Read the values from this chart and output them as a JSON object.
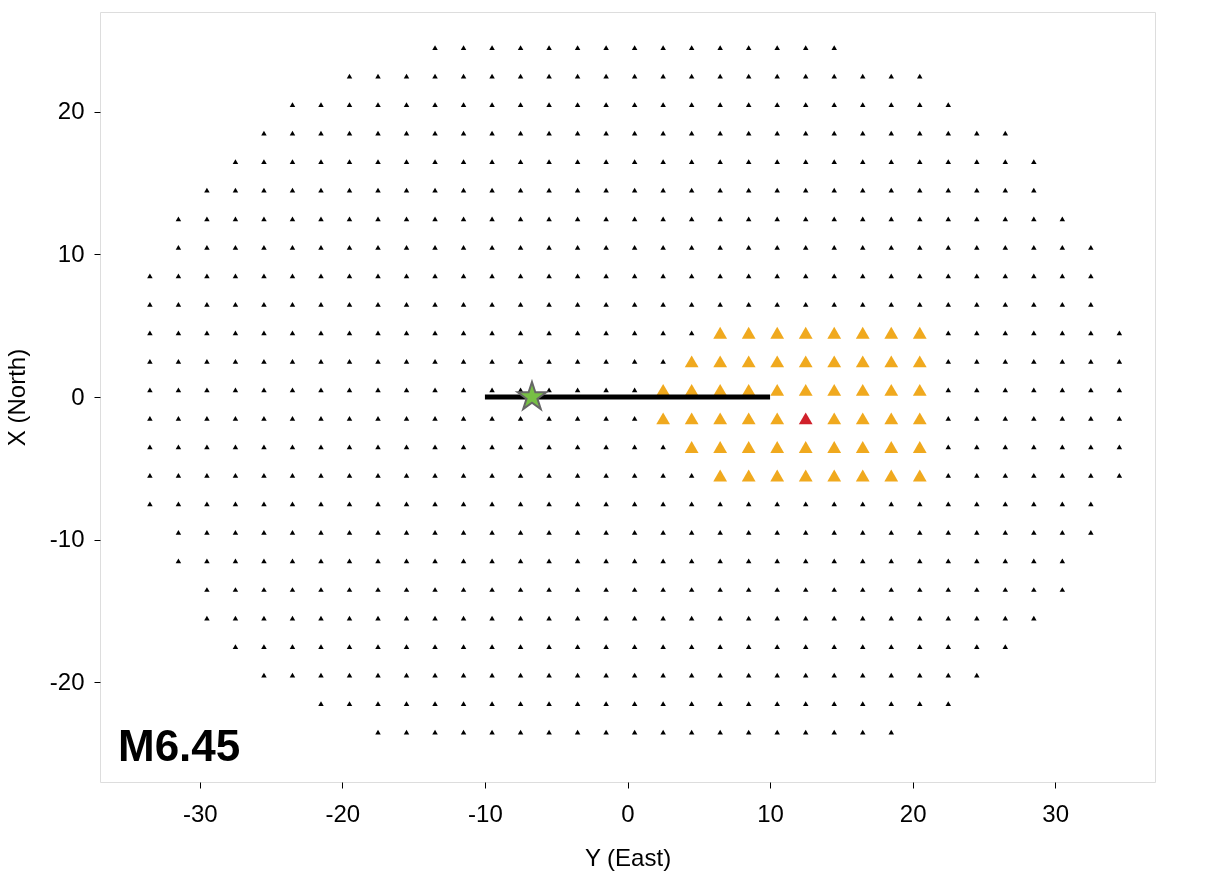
{
  "chart_data": {
    "type": "scatter",
    "xlabel": "Y (East)",
    "ylabel": "X (North)",
    "xlim": [
      -37,
      37
    ],
    "ylim": [
      -27,
      27
    ],
    "grid": false,
    "marker": "triangle",
    "annotations": [
      "M6.45"
    ],
    "xticks": [
      -30,
      -20,
      -10,
      0,
      10,
      20,
      30
    ],
    "yticks": [
      -20,
      -10,
      0,
      10,
      20
    ],
    "series": [
      {
        "color": "#000000",
        "x": [
          -13.5,
          -11.5,
          -9.5,
          -7.5,
          -5.5,
          -3.5,
          -1.5,
          0.5,
          2.5,
          4.5,
          6.5,
          8.5,
          10.5,
          12.5,
          14.5
        ],
        "values": [
          24.5,
          24.5,
          24.5,
          24.5,
          24.5,
          24.5,
          24.5,
          24.5,
          24.5,
          24.5,
          24.5,
          24.5,
          24.5,
          24.5,
          24.5
        ]
      },
      {
        "color": "#000000",
        "x": [
          -19.5,
          -17.5,
          -15.5,
          -13.5,
          -11.5,
          -9.5,
          -7.5,
          -5.5,
          -3.5,
          -1.5,
          0.5,
          2.5,
          4.5,
          6.5,
          8.5,
          10.5,
          12.5,
          14.5,
          16.5,
          18.5,
          20.5
        ],
        "values": [
          22.5,
          22.5,
          22.5,
          22.5,
          22.5,
          22.5,
          22.5,
          22.5,
          22.5,
          22.5,
          22.5,
          22.5,
          22.5,
          22.5,
          22.5,
          22.5,
          22.5,
          22.5,
          22.5,
          22.5,
          22.5
        ]
      },
      {
        "color": "#000000",
        "x": [
          -23.5,
          -21.5,
          -19.5,
          -17.5,
          -15.5,
          -13.5,
          -11.5,
          -9.5,
          -7.5,
          -5.5,
          -3.5,
          -1.5,
          0.5,
          2.5,
          4.5,
          6.5,
          8.5,
          10.5,
          12.5,
          14.5,
          16.5,
          18.5,
          20.5,
          22.5
        ],
        "values": [
          20.5,
          20.5,
          20.5,
          20.5,
          20.5,
          20.5,
          20.5,
          20.5,
          20.5,
          20.5,
          20.5,
          20.5,
          20.5,
          20.5,
          20.5,
          20.5,
          20.5,
          20.5,
          20.5,
          20.5,
          20.5,
          20.5,
          20.5,
          20.5
        ]
      },
      {
        "color": "#000000",
        "x": [
          -25.5,
          -23.5,
          -21.5,
          -19.5,
          -17.5,
          -15.5,
          -13.5,
          -11.5,
          -9.5,
          -7.5,
          -5.5,
          -3.5,
          -1.5,
          0.5,
          2.5,
          4.5,
          6.5,
          8.5,
          10.5,
          12.5,
          14.5,
          16.5,
          18.5,
          20.5,
          22.5,
          24.5,
          26.5
        ],
        "values": [
          18.5,
          18.5,
          18.5,
          18.5,
          18.5,
          18.5,
          18.5,
          18.5,
          18.5,
          18.5,
          18.5,
          18.5,
          18.5,
          18.5,
          18.5,
          18.5,
          18.5,
          18.5,
          18.5,
          18.5,
          18.5,
          18.5,
          18.5,
          18.5,
          18.5,
          18.5,
          18.5
        ]
      },
      {
        "color": "#000000",
        "x": [
          -27.5,
          -25.5,
          -23.5,
          -21.5,
          -19.5,
          -17.5,
          -15.5,
          -13.5,
          -11.5,
          -9.5,
          -7.5,
          -5.5,
          -3.5,
          -1.5,
          0.5,
          2.5,
          4.5,
          6.5,
          8.5,
          10.5,
          12.5,
          14.5,
          16.5,
          18.5,
          20.5,
          22.5,
          24.5,
          26.5,
          28.5
        ],
        "values": [
          16.5,
          16.5,
          16.5,
          16.5,
          16.5,
          16.5,
          16.5,
          16.5,
          16.5,
          16.5,
          16.5,
          16.5,
          16.5,
          16.5,
          16.5,
          16.5,
          16.5,
          16.5,
          16.5,
          16.5,
          16.5,
          16.5,
          16.5,
          16.5,
          16.5,
          16.5,
          16.5,
          16.5,
          16.5
        ]
      },
      {
        "color": "#000000",
        "x": [
          -29.5,
          -27.5,
          -25.5,
          -23.5,
          -21.5,
          -19.5,
          -17.5,
          -15.5,
          -13.5,
          -11.5,
          -9.5,
          -7.5,
          -5.5,
          -3.5,
          -1.5,
          0.5,
          2.5,
          4.5,
          6.5,
          8.5,
          10.5,
          12.5,
          14.5,
          16.5,
          18.5,
          20.5,
          22.5,
          24.5,
          26.5,
          28.5
        ],
        "values": [
          14.5,
          14.5,
          14.5,
          14.5,
          14.5,
          14.5,
          14.5,
          14.5,
          14.5,
          14.5,
          14.5,
          14.5,
          14.5,
          14.5,
          14.5,
          14.5,
          14.5,
          14.5,
          14.5,
          14.5,
          14.5,
          14.5,
          14.5,
          14.5,
          14.5,
          14.5,
          14.5,
          14.5,
          14.5,
          14.5
        ]
      },
      {
        "color": "#000000",
        "x": [
          -31.5,
          -29.5,
          -27.5,
          -25.5,
          -23.5,
          -21.5,
          -19.5,
          -17.5,
          -15.5,
          -13.5,
          -11.5,
          -9.5,
          -7.5,
          -5.5,
          -3.5,
          -1.5,
          0.5,
          2.5,
          4.5,
          6.5,
          8.5,
          10.5,
          12.5,
          14.5,
          16.5,
          18.5,
          20.5,
          22.5,
          24.5,
          26.5,
          28.5,
          30.5
        ],
        "values": [
          12.5,
          12.5,
          12.5,
          12.5,
          12.5,
          12.5,
          12.5,
          12.5,
          12.5,
          12.5,
          12.5,
          12.5,
          12.5,
          12.5,
          12.5,
          12.5,
          12.5,
          12.5,
          12.5,
          12.5,
          12.5,
          12.5,
          12.5,
          12.5,
          12.5,
          12.5,
          12.5,
          12.5,
          12.5,
          12.5,
          12.5,
          12.5
        ]
      },
      {
        "color": "#000000",
        "x": [
          -31.5,
          -29.5,
          -27.5,
          -25.5,
          -23.5,
          -21.5,
          -19.5,
          -17.5,
          -15.5,
          -13.5,
          -11.5,
          -9.5,
          -7.5,
          -5.5,
          -3.5,
          -1.5,
          0.5,
          2.5,
          4.5,
          6.5,
          8.5,
          10.5,
          12.5,
          14.5,
          16.5,
          18.5,
          20.5,
          22.5,
          24.5,
          26.5,
          28.5,
          30.5,
          32.5
        ],
        "values": [
          10.5,
          10.5,
          10.5,
          10.5,
          10.5,
          10.5,
          10.5,
          10.5,
          10.5,
          10.5,
          10.5,
          10.5,
          10.5,
          10.5,
          10.5,
          10.5,
          10.5,
          10.5,
          10.5,
          10.5,
          10.5,
          10.5,
          10.5,
          10.5,
          10.5,
          10.5,
          10.5,
          10.5,
          10.5,
          10.5,
          10.5,
          10.5,
          10.5
        ]
      },
      {
        "color": "#000000",
        "x": [
          -33.5,
          -31.5,
          -29.5,
          -27.5,
          -25.5,
          -23.5,
          -21.5,
          -19.5,
          -17.5,
          -15.5,
          -13.5,
          -11.5,
          -9.5,
          -7.5,
          -5.5,
          -3.5,
          -1.5,
          0.5,
          2.5,
          4.5,
          6.5,
          8.5,
          10.5,
          12.5,
          14.5,
          16.5,
          18.5,
          20.5,
          22.5,
          24.5,
          26.5,
          28.5,
          30.5,
          32.5
        ],
        "values": [
          8.5,
          8.5,
          8.5,
          8.5,
          8.5,
          8.5,
          8.5,
          8.5,
          8.5,
          8.5,
          8.5,
          8.5,
          8.5,
          8.5,
          8.5,
          8.5,
          8.5,
          8.5,
          8.5,
          8.5,
          8.5,
          8.5,
          8.5,
          8.5,
          8.5,
          8.5,
          8.5,
          8.5,
          8.5,
          8.5,
          8.5,
          8.5,
          8.5,
          8.5
        ]
      },
      {
        "color": "#000000",
        "x": [
          -33.5,
          -31.5,
          -29.5,
          -27.5,
          -25.5,
          -23.5,
          -21.5,
          -19.5,
          -17.5,
          -15.5,
          -13.5,
          -11.5,
          -9.5,
          -7.5,
          -5.5,
          -3.5,
          -1.5,
          0.5,
          2.5,
          4.5,
          6.5,
          8.5,
          10.5,
          12.5,
          14.5,
          16.5,
          18.5,
          20.5,
          22.5,
          24.5,
          26.5,
          28.5,
          30.5,
          32.5
        ],
        "values": [
          6.5,
          6.5,
          6.5,
          6.5,
          6.5,
          6.5,
          6.5,
          6.5,
          6.5,
          6.5,
          6.5,
          6.5,
          6.5,
          6.5,
          6.5,
          6.5,
          6.5,
          6.5,
          6.5,
          6.5,
          6.5,
          6.5,
          6.5,
          6.5,
          6.5,
          6.5,
          6.5,
          6.5,
          6.5,
          6.5,
          6.5,
          6.5,
          6.5,
          6.5
        ]
      },
      {
        "color": "#000000",
        "x": [
          -33.5,
          -31.5,
          -29.5,
          -27.5,
          -25.5,
          -23.5,
          -21.5,
          -19.5,
          -17.5,
          -15.5,
          -13.5,
          -11.5,
          -9.5,
          -7.5,
          -5.5,
          -3.5,
          -1.5,
          0.5,
          2.5,
          4.5,
          22.5,
          24.5,
          26.5,
          28.5,
          30.5,
          32.5,
          34.5
        ],
        "values": [
          4.5,
          4.5,
          4.5,
          4.5,
          4.5,
          4.5,
          4.5,
          4.5,
          4.5,
          4.5,
          4.5,
          4.5,
          4.5,
          4.5,
          4.5,
          4.5,
          4.5,
          4.5,
          4.5,
          4.5,
          4.5,
          4.5,
          4.5,
          4.5,
          4.5,
          4.5,
          4.5
        ]
      },
      {
        "color": "#000000",
        "x": [
          -33.5,
          -31.5,
          -29.5,
          -27.5,
          -25.5,
          -23.5,
          -21.5,
          -19.5,
          -17.5,
          -15.5,
          -13.5,
          -11.5,
          -9.5,
          -7.5,
          -5.5,
          -3.5,
          -1.5,
          0.5,
          2.5,
          22.5,
          24.5,
          26.5,
          28.5,
          30.5,
          32.5,
          34.5
        ],
        "values": [
          2.5,
          2.5,
          2.5,
          2.5,
          2.5,
          2.5,
          2.5,
          2.5,
          2.5,
          2.5,
          2.5,
          2.5,
          2.5,
          2.5,
          2.5,
          2.5,
          2.5,
          2.5,
          2.5,
          2.5,
          2.5,
          2.5,
          2.5,
          2.5,
          2.5,
          2.5
        ]
      },
      {
        "color": "#000000",
        "x": [
          -33.5,
          -31.5,
          -29.5,
          -27.5,
          -25.5,
          -23.5,
          -21.5,
          -19.5,
          -17.5,
          -15.5,
          -13.5,
          -11.5,
          -9.5,
          -7.5,
          -5.5,
          -3.5,
          -1.5,
          0.5,
          22.5,
          24.5,
          26.5,
          28.5,
          30.5,
          32.5,
          34.5
        ],
        "values": [
          0.5,
          0.5,
          0.5,
          0.5,
          0.5,
          0.5,
          0.5,
          0.5,
          0.5,
          0.5,
          0.5,
          0.5,
          0.5,
          0.5,
          0.5,
          0.5,
          0.5,
          0.5,
          0.5,
          0.5,
          0.5,
          0.5,
          0.5,
          0.5,
          0.5
        ]
      },
      {
        "color": "#000000",
        "x": [
          -33.5,
          -31.5,
          -29.5,
          -27.5,
          -25.5,
          -23.5,
          -21.5,
          -19.5,
          -17.5,
          -15.5,
          -13.5,
          -11.5,
          -9.5,
          -7.5,
          -5.5,
          -3.5,
          -1.5,
          0.5,
          22.5,
          24.5,
          26.5,
          28.5,
          30.5,
          32.5,
          34.5
        ],
        "values": [
          -1.5,
          -1.5,
          -1.5,
          -1.5,
          -1.5,
          -1.5,
          -1.5,
          -1.5,
          -1.5,
          -1.5,
          -1.5,
          -1.5,
          -1.5,
          -1.5,
          -1.5,
          -1.5,
          -1.5,
          -1.5,
          -1.5,
          -1.5,
          -1.5,
          -1.5,
          -1.5,
          -1.5,
          -1.5
        ]
      },
      {
        "color": "#000000",
        "x": [
          -33.5,
          -31.5,
          -29.5,
          -27.5,
          -25.5,
          -23.5,
          -21.5,
          -19.5,
          -17.5,
          -15.5,
          -13.5,
          -11.5,
          -9.5,
          -7.5,
          -5.5,
          -3.5,
          -1.5,
          0.5,
          2.5,
          22.5,
          24.5,
          26.5,
          28.5,
          30.5,
          32.5,
          34.5
        ],
        "values": [
          -3.5,
          -3.5,
          -3.5,
          -3.5,
          -3.5,
          -3.5,
          -3.5,
          -3.5,
          -3.5,
          -3.5,
          -3.5,
          -3.5,
          -3.5,
          -3.5,
          -3.5,
          -3.5,
          -3.5,
          -3.5,
          -3.5,
          -3.5,
          -3.5,
          -3.5,
          -3.5,
          -3.5,
          -3.5,
          -3.5
        ]
      },
      {
        "color": "#000000",
        "x": [
          -33.5,
          -31.5,
          -29.5,
          -27.5,
          -25.5,
          -23.5,
          -21.5,
          -19.5,
          -17.5,
          -15.5,
          -13.5,
          -11.5,
          -9.5,
          -7.5,
          -5.5,
          -3.5,
          -1.5,
          0.5,
          2.5,
          4.5,
          22.5,
          24.5,
          26.5,
          28.5,
          30.5,
          32.5,
          34.5
        ],
        "values": [
          -5.5,
          -5.5,
          -5.5,
          -5.5,
          -5.5,
          -5.5,
          -5.5,
          -5.5,
          -5.5,
          -5.5,
          -5.5,
          -5.5,
          -5.5,
          -5.5,
          -5.5,
          -5.5,
          -5.5,
          -5.5,
          -5.5,
          -5.5,
          -5.5,
          -5.5,
          -5.5,
          -5.5,
          -5.5,
          -5.5,
          -5.5
        ]
      },
      {
        "color": "#000000",
        "x": [
          -33.5,
          -31.5,
          -29.5,
          -27.5,
          -25.5,
          -23.5,
          -21.5,
          -19.5,
          -17.5,
          -15.5,
          -13.5,
          -11.5,
          -9.5,
          -7.5,
          -5.5,
          -3.5,
          -1.5,
          0.5,
          2.5,
          4.5,
          6.5,
          8.5,
          10.5,
          12.5,
          14.5,
          16.5,
          18.5,
          20.5,
          22.5,
          24.5,
          26.5,
          28.5,
          30.5,
          32.5
        ],
        "values": [
          -7.5,
          -7.5,
          -7.5,
          -7.5,
          -7.5,
          -7.5,
          -7.5,
          -7.5,
          -7.5,
          -7.5,
          -7.5,
          -7.5,
          -7.5,
          -7.5,
          -7.5,
          -7.5,
          -7.5,
          -7.5,
          -7.5,
          -7.5,
          -7.5,
          -7.5,
          -7.5,
          -7.5,
          -7.5,
          -7.5,
          -7.5,
          -7.5,
          -7.5,
          -7.5,
          -7.5,
          -7.5,
          -7.5,
          -7.5
        ]
      },
      {
        "color": "#000000",
        "x": [
          -31.5,
          -29.5,
          -27.5,
          -25.5,
          -23.5,
          -21.5,
          -19.5,
          -17.5,
          -15.5,
          -13.5,
          -11.5,
          -9.5,
          -7.5,
          -5.5,
          -3.5,
          -1.5,
          0.5,
          2.5,
          4.5,
          6.5,
          8.5,
          10.5,
          12.5,
          14.5,
          16.5,
          18.5,
          20.5,
          22.5,
          24.5,
          26.5,
          28.5,
          30.5,
          32.5
        ],
        "values": [
          -9.5,
          -9.5,
          -9.5,
          -9.5,
          -9.5,
          -9.5,
          -9.5,
          -9.5,
          -9.5,
          -9.5,
          -9.5,
          -9.5,
          -9.5,
          -9.5,
          -9.5,
          -9.5,
          -9.5,
          -9.5,
          -9.5,
          -9.5,
          -9.5,
          -9.5,
          -9.5,
          -9.5,
          -9.5,
          -9.5,
          -9.5,
          -9.5,
          -9.5,
          -9.5,
          -9.5,
          -9.5,
          -9.5
        ]
      },
      {
        "color": "#000000",
        "x": [
          -31.5,
          -29.5,
          -27.5,
          -25.5,
          -23.5,
          -21.5,
          -19.5,
          -17.5,
          -15.5,
          -13.5,
          -11.5,
          -9.5,
          -7.5,
          -5.5,
          -3.5,
          -1.5,
          0.5,
          2.5,
          4.5,
          6.5,
          8.5,
          10.5,
          12.5,
          14.5,
          16.5,
          18.5,
          20.5,
          22.5,
          24.5,
          26.5,
          28.5,
          30.5
        ],
        "values": [
          -11.5,
          -11.5,
          -11.5,
          -11.5,
          -11.5,
          -11.5,
          -11.5,
          -11.5,
          -11.5,
          -11.5,
          -11.5,
          -11.5,
          -11.5,
          -11.5,
          -11.5,
          -11.5,
          -11.5,
          -11.5,
          -11.5,
          -11.5,
          -11.5,
          -11.5,
          -11.5,
          -11.5,
          -11.5,
          -11.5,
          -11.5,
          -11.5,
          -11.5,
          -11.5,
          -11.5,
          -11.5
        ]
      },
      {
        "color": "#000000",
        "x": [
          -29.5,
          -27.5,
          -25.5,
          -23.5,
          -21.5,
          -19.5,
          -17.5,
          -15.5,
          -13.5,
          -11.5,
          -9.5,
          -7.5,
          -5.5,
          -3.5,
          -1.5,
          0.5,
          2.5,
          4.5,
          6.5,
          8.5,
          10.5,
          12.5,
          14.5,
          16.5,
          18.5,
          20.5,
          22.5,
          24.5,
          26.5,
          28.5,
          30.5
        ],
        "values": [
          -13.5,
          -13.5,
          -13.5,
          -13.5,
          -13.5,
          -13.5,
          -13.5,
          -13.5,
          -13.5,
          -13.5,
          -13.5,
          -13.5,
          -13.5,
          -13.5,
          -13.5,
          -13.5,
          -13.5,
          -13.5,
          -13.5,
          -13.5,
          -13.5,
          -13.5,
          -13.5,
          -13.5,
          -13.5,
          -13.5,
          -13.5,
          -13.5,
          -13.5,
          -13.5,
          -13.5
        ]
      },
      {
        "color": "#000000",
        "x": [
          -29.5,
          -27.5,
          -25.5,
          -23.5,
          -21.5,
          -19.5,
          -17.5,
          -15.5,
          -13.5,
          -11.5,
          -9.5,
          -7.5,
          -5.5,
          -3.5,
          -1.5,
          0.5,
          2.5,
          4.5,
          6.5,
          8.5,
          10.5,
          12.5,
          14.5,
          16.5,
          18.5,
          20.5,
          22.5,
          24.5,
          26.5,
          28.5
        ],
        "values": [
          -15.5,
          -15.5,
          -15.5,
          -15.5,
          -15.5,
          -15.5,
          -15.5,
          -15.5,
          -15.5,
          -15.5,
          -15.5,
          -15.5,
          -15.5,
          -15.5,
          -15.5,
          -15.5,
          -15.5,
          -15.5,
          -15.5,
          -15.5,
          -15.5,
          -15.5,
          -15.5,
          -15.5,
          -15.5,
          -15.5,
          -15.5,
          -15.5,
          -15.5,
          -15.5
        ]
      },
      {
        "color": "#000000",
        "x": [
          -27.5,
          -25.5,
          -23.5,
          -21.5,
          -19.5,
          -17.5,
          -15.5,
          -13.5,
          -11.5,
          -9.5,
          -7.5,
          -5.5,
          -3.5,
          -1.5,
          0.5,
          2.5,
          4.5,
          6.5,
          8.5,
          10.5,
          12.5,
          14.5,
          16.5,
          18.5,
          20.5,
          22.5,
          24.5,
          26.5
        ],
        "values": [
          -17.5,
          -17.5,
          -17.5,
          -17.5,
          -17.5,
          -17.5,
          -17.5,
          -17.5,
          -17.5,
          -17.5,
          -17.5,
          -17.5,
          -17.5,
          -17.5,
          -17.5,
          -17.5,
          -17.5,
          -17.5,
          -17.5,
          -17.5,
          -17.5,
          -17.5,
          -17.5,
          -17.5,
          -17.5,
          -17.5,
          -17.5,
          -17.5
        ]
      },
      {
        "color": "#000000",
        "x": [
          -25.5,
          -23.5,
          -21.5,
          -19.5,
          -17.5,
          -15.5,
          -13.5,
          -11.5,
          -9.5,
          -7.5,
          -5.5,
          -3.5,
          -1.5,
          0.5,
          2.5,
          4.5,
          6.5,
          8.5,
          10.5,
          12.5,
          14.5,
          16.5,
          18.5,
          20.5,
          22.5,
          24.5
        ],
        "values": [
          -19.5,
          -19.5,
          -19.5,
          -19.5,
          -19.5,
          -19.5,
          -19.5,
          -19.5,
          -19.5,
          -19.5,
          -19.5,
          -19.5,
          -19.5,
          -19.5,
          -19.5,
          -19.5,
          -19.5,
          -19.5,
          -19.5,
          -19.5,
          -19.5,
          -19.5,
          -19.5,
          -19.5,
          -19.5,
          -19.5
        ]
      },
      {
        "color": "#000000",
        "x": [
          -21.5,
          -19.5,
          -17.5,
          -15.5,
          -13.5,
          -11.5,
          -9.5,
          -7.5,
          -5.5,
          -3.5,
          -1.5,
          0.5,
          2.5,
          4.5,
          6.5,
          8.5,
          10.5,
          12.5,
          14.5,
          16.5,
          18.5,
          20.5,
          22.5
        ],
        "values": [
          -21.5,
          -21.5,
          -21.5,
          -21.5,
          -21.5,
          -21.5,
          -21.5,
          -21.5,
          -21.5,
          -21.5,
          -21.5,
          -21.5,
          -21.5,
          -21.5,
          -21.5,
          -21.5,
          -21.5,
          -21.5,
          -21.5,
          -21.5,
          -21.5,
          -21.5,
          -21.5
        ]
      },
      {
        "color": "#000000",
        "x": [
          -17.5,
          -15.5,
          -13.5,
          -11.5,
          -9.5,
          -7.5,
          -5.5,
          -3.5,
          -1.5,
          0.5,
          2.5,
          4.5,
          6.5,
          8.5,
          10.5,
          12.5,
          14.5,
          16.5,
          18.5
        ],
        "values": [
          -23.5,
          -23.5,
          -23.5,
          -23.5,
          -23.5,
          -23.5,
          -23.5,
          -23.5,
          -23.5,
          -23.5,
          -23.5,
          -23.5,
          -23.5,
          -23.5,
          -23.5,
          -23.5,
          -23.5,
          -23.5,
          -23.5
        ]
      },
      {
        "color": "#f0a91e",
        "x": [
          6.5,
          8.5,
          10.5,
          14.5,
          16.5,
          18.5,
          20.5,
          4.5,
          6.5,
          8.5,
          10.5,
          14.5,
          16.5,
          18.5,
          20.5,
          2.5,
          4.5,
          6.5,
          8.5,
          10.5,
          14.5,
          16.5,
          18.5,
          20.5,
          2.5,
          4.5,
          6.5,
          8.5,
          10.5,
          14.5,
          16.5,
          18.5,
          20.5,
          4.5,
          6.5,
          8.5,
          10.5,
          14.5,
          16.5,
          18.5,
          20.5,
          6.5,
          8.5,
          10.5,
          14.5,
          16.5,
          18.5,
          20.5
        ],
        "values": [
          4.5,
          4.5,
          4.5,
          4.5,
          4.5,
          4.5,
          4.5,
          2.5,
          2.5,
          2.5,
          2.5,
          2.5,
          2.5,
          2.5,
          2.5,
          0.5,
          0.5,
          0.5,
          0.5,
          0.5,
          0.5,
          0.5,
          0.5,
          0.5,
          -1.5,
          -1.5,
          -1.5,
          -1.5,
          -1.5,
          -1.5,
          -1.5,
          -1.5,
          -1.5,
          -3.5,
          -3.5,
          -3.5,
          -3.5,
          -3.5,
          -3.5,
          -3.5,
          -3.5,
          -5.5,
          -5.5,
          -5.5,
          -5.5,
          -5.5,
          -5.5,
          -5.5
        ]
      },
      {
        "color": "#f0a91e",
        "x": [
          12.5,
          12.5,
          12.5,
          12.5,
          12.5
        ],
        "values": [
          4.5,
          2.5,
          0.5,
          -3.5,
          -5.5
        ]
      },
      {
        "color": "#d0202a",
        "x": [
          12.5
        ],
        "values": [
          -1.5
        ]
      },
      {
        "type": "line",
        "marker": "none",
        "color": "#000000",
        "x": [
          -10,
          10
        ],
        "values": [
          0,
          0
        ]
      },
      {
        "color": "#77bf45",
        "marker": "star",
        "x": [
          -6.7
        ],
        "values": [
          0
        ]
      }
    ]
  }
}
